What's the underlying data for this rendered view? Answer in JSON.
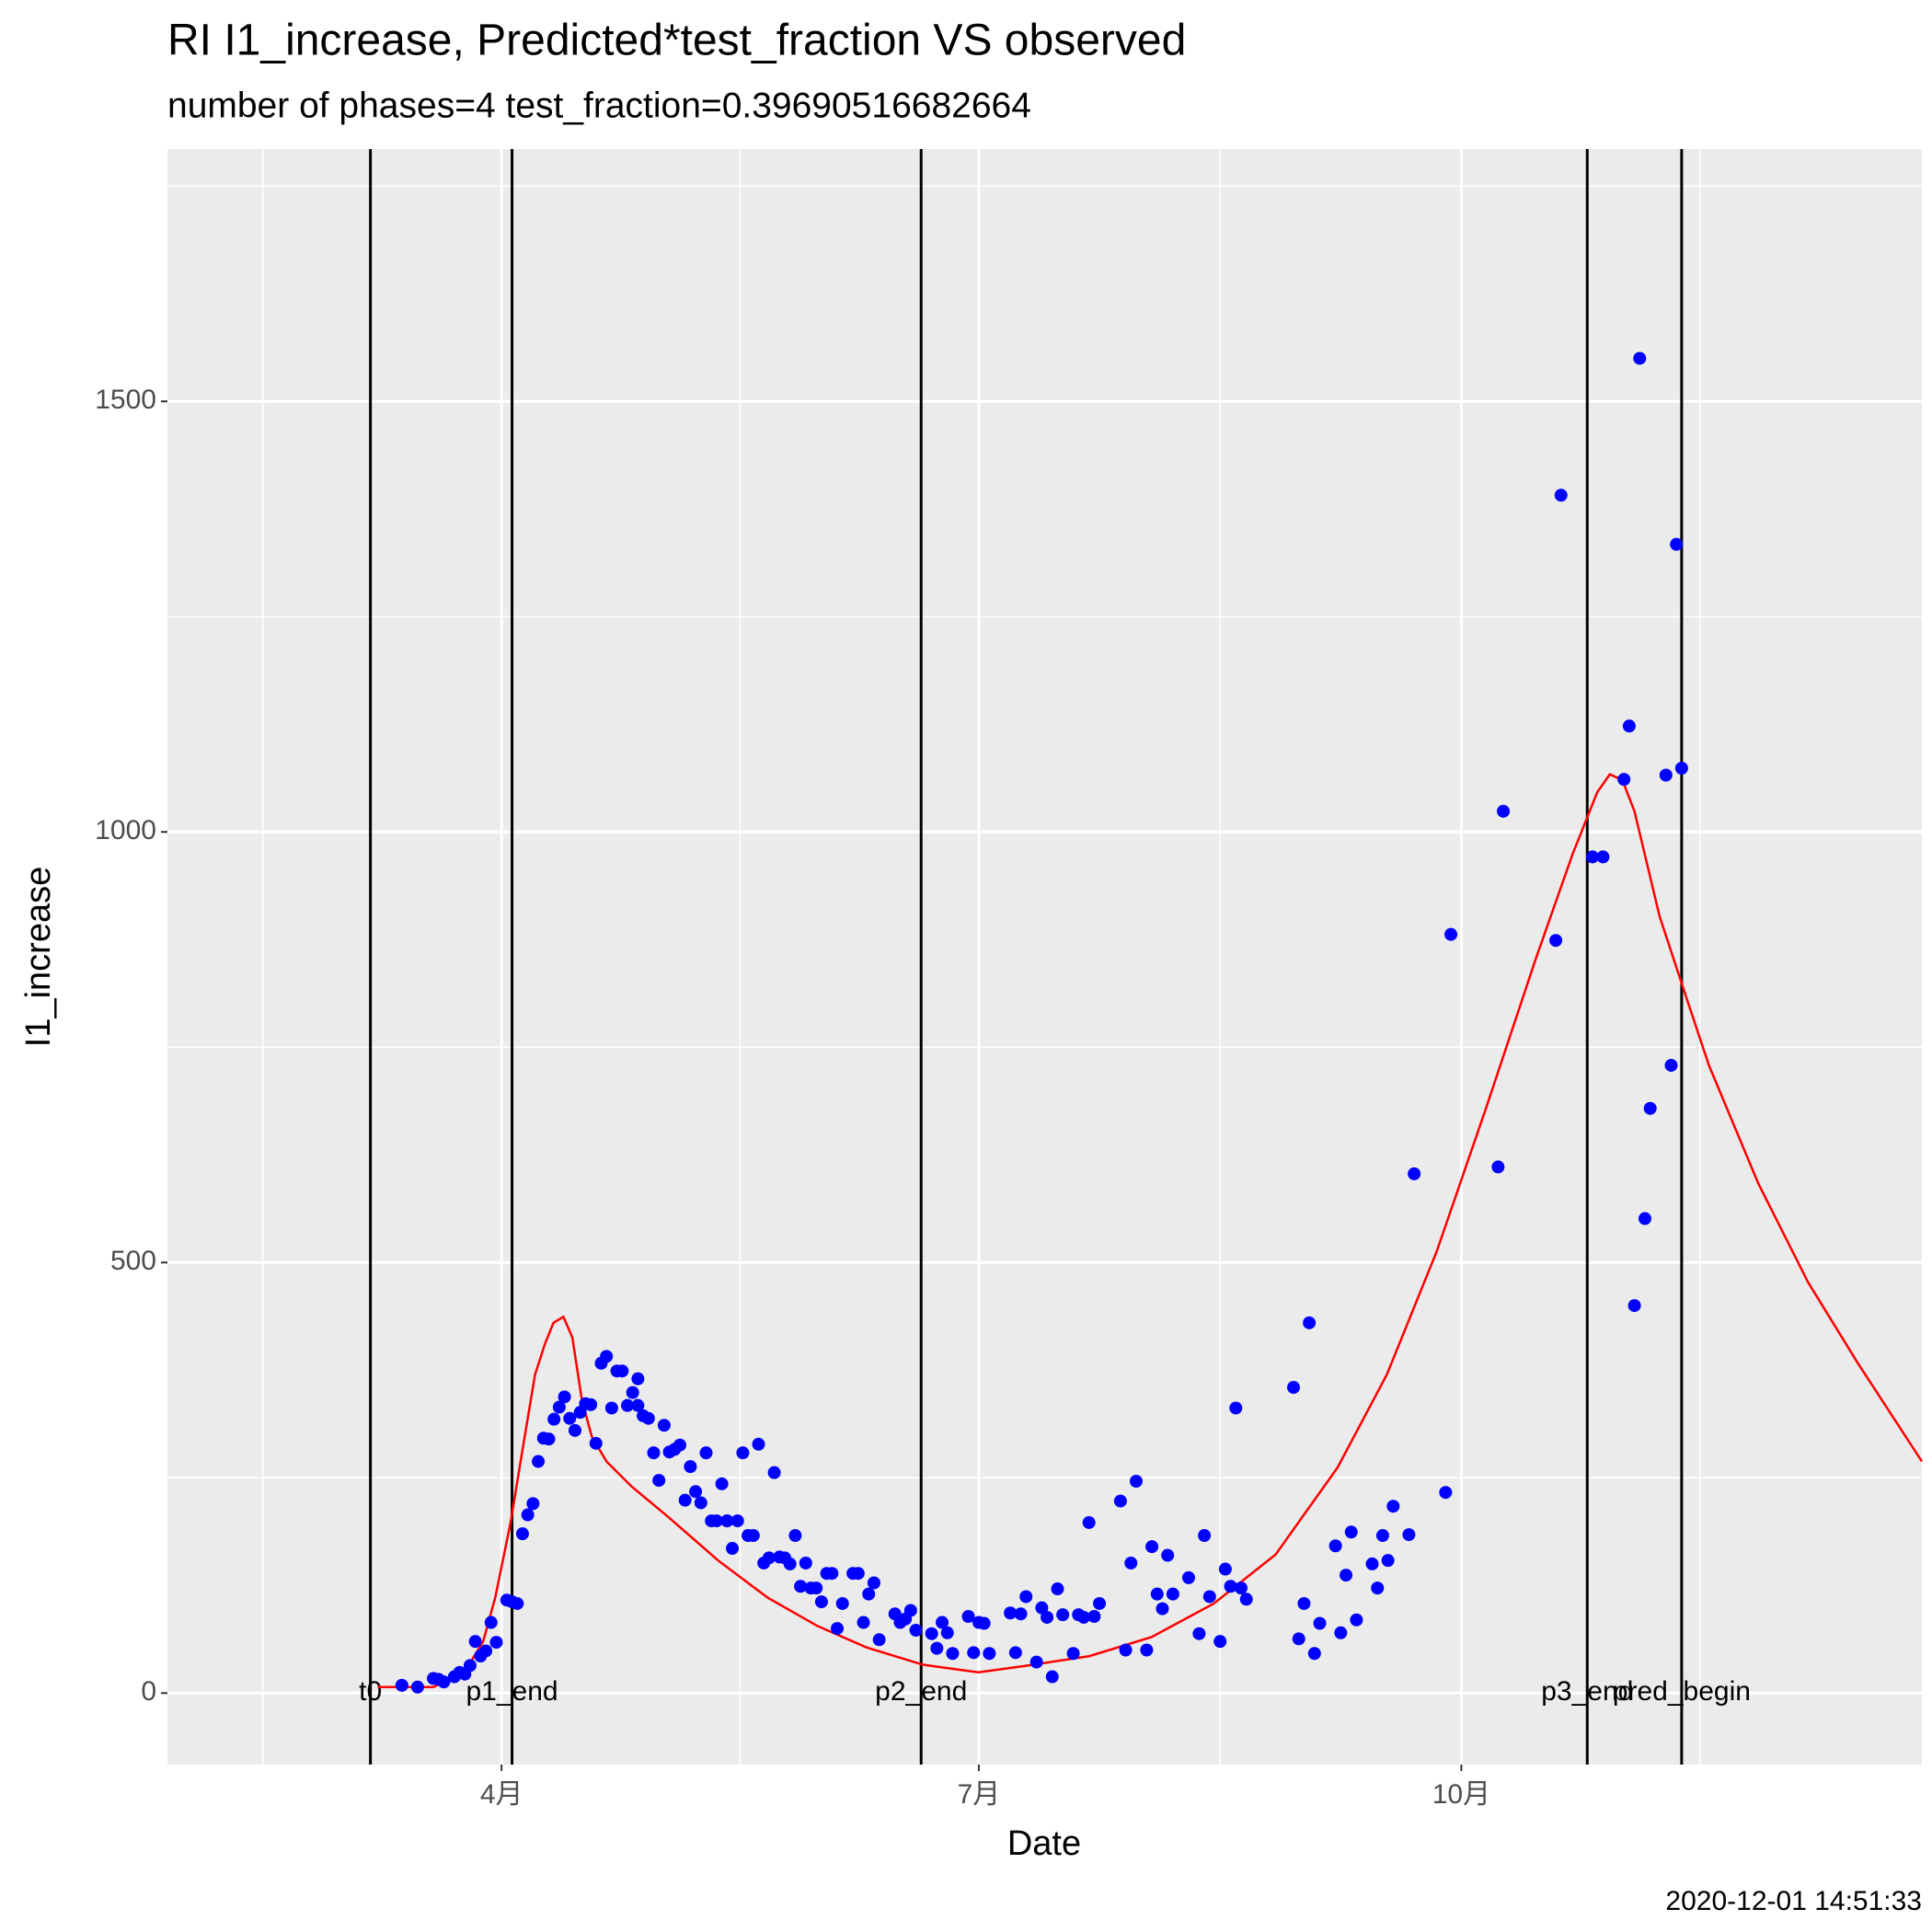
{
  "chart_data": {
    "type": "scatter",
    "title": "RI I1_increase, Predicted*test_fraction VS observed",
    "subtitle": "number of phases=4   test_fraction=0.39690516682664",
    "x_label": "Date",
    "y_label": "I1_increase",
    "caption": "2020-12-01 14:51:33",
    "xlim": [
      28.3,
      362.8
    ],
    "ylim": [
      -83,
      1793
    ],
    "xticks": [
      {
        "value": 92,
        "label": "4月"
      },
      {
        "value": 183,
        "label": "7月"
      },
      {
        "value": 275,
        "label": "10月"
      }
    ],
    "x_minor_ticks": [
      46.5,
      137.5,
      229,
      320.5
    ],
    "yticks": [
      0,
      500,
      1000,
      1500
    ],
    "y_minor_ticks": [
      250,
      750,
      1250,
      1750
    ],
    "grid": true,
    "points": {
      "color": "#0000ff",
      "x": [
        73,
        76,
        79,
        80,
        81,
        83,
        84,
        85,
        86,
        87,
        88,
        89,
        90,
        91,
        93,
        94,
        95,
        96,
        97,
        98,
        99,
        100,
        101,
        102,
        103,
        104,
        105,
        106,
        107,
        108,
        109,
        110,
        111,
        112,
        113,
        114,
        115,
        116,
        117,
        118,
        118,
        119,
        120,
        121,
        122,
        123,
        124,
        125,
        126,
        127,
        128,
        129,
        130,
        131,
        132,
        133,
        134,
        135,
        135,
        136,
        137,
        138,
        139,
        140,
        141,
        142,
        143,
        144,
        145,
        146,
        147,
        148,
        149,
        150,
        151,
        152,
        153,
        154,
        155,
        156,
        157,
        159,
        160,
        161,
        162,
        163,
        164,
        167,
        168,
        169,
        170,
        171,
        174,
        175,
        176,
        177,
        178,
        181,
        182,
        183,
        184,
        185,
        189,
        190,
        191,
        192,
        194,
        195,
        196,
        197,
        198,
        199,
        201,
        202,
        203,
        204,
        205,
        206,
        210,
        211,
        212,
        213,
        215,
        216,
        217,
        218,
        219,
        220,
        223,
        225,
        226,
        227,
        229,
        230,
        231,
        232,
        233,
        234,
        243,
        244,
        245,
        246,
        247,
        248,
        251,
        252,
        253,
        254,
        255,
        258,
        259,
        260,
        261,
        262,
        265,
        266,
        272,
        273,
        282,
        283,
        293,
        294,
        300,
        302,
        306,
        307,
        308,
        309,
        310,
        311,
        314,
        315,
        316,
        317
      ],
      "y": [
        9,
        7,
        17,
        16,
        13,
        19,
        24,
        22,
        32,
        60,
        43,
        49,
        82,
        59,
        108,
        106,
        104,
        185,
        207,
        220,
        269,
        296,
        295,
        318,
        332,
        344,
        319,
        305,
        326,
        336,
        335,
        290,
        383,
        391,
        331,
        374,
        374,
        334,
        349,
        365,
        334,
        322,
        319,
        279,
        247,
        311,
        280,
        283,
        288,
        224,
        263,
        234,
        221,
        279,
        200,
        200,
        243,
        200,
        200,
        168,
        200,
        279,
        183,
        183,
        289,
        151,
        157,
        256,
        158,
        157,
        150,
        183,
        124,
        151,
        122,
        122,
        106,
        139,
        139,
        75,
        104,
        139,
        139,
        82,
        115,
        128,
        62,
        92,
        82,
        86,
        96,
        73,
        69,
        52,
        82,
        70,
        46,
        89,
        47,
        82,
        81,
        46,
        93,
        47,
        92,
        112,
        36,
        99,
        88,
        19,
        121,
        91,
        46,
        91,
        88,
        198,
        89,
        104,
        223,
        50,
        151,
        246,
        50,
        170,
        115,
        98,
        160,
        115,
        134,
        69,
        183,
        112,
        60,
        144,
        124,
        331,
        122,
        109,
        355,
        63,
        104,
        430,
        46,
        81,
        171,
        70,
        137,
        187,
        85,
        150,
        122,
        183,
        154,
        217,
        184,
        603,
        233,
        881,
        611,
        1024,
        874,
        1391,
        971,
        971,
        1061,
        1123,
        450,
        1550,
        551,
        679,
        1066,
        729,
        1334,
        1074
      ]
    },
    "line": {
      "color": "#ff0000",
      "x": [
        68.4,
        79,
        84.9,
        88.5,
        90.8,
        93.7,
        96,
        98.4,
        100.3,
        101.9,
        103.8,
        105.5,
        107.3,
        109.2,
        112,
        116.8,
        123.9,
        133.3,
        142.7,
        152.2,
        161.6,
        172.3,
        182.9,
        192.3,
        204.1,
        215.9,
        227.8,
        239.6,
        251.4,
        260.8,
        270.3,
        279.7,
        289.1,
        296.2,
        300.9,
        303.3,
        305.7,
        308,
        312.8,
        317.5,
        322.2,
        331.6,
        341.1,
        350.5,
        362.8
      ],
      "y": [
        7,
        7,
        24,
        60,
        111,
        197,
        283,
        370,
        406,
        430,
        437,
        413,
        341,
        298,
        269,
        240,
        204,
        154,
        111,
        78,
        53,
        33,
        24,
        32,
        43,
        65,
        104,
        161,
        262,
        370,
        513,
        679,
        851,
        974,
        1046,
        1067,
        1060,
        1024,
        902,
        815,
        729,
        592,
        477,
        384,
        269
      ]
    },
    "vlines": [
      {
        "x": 67,
        "label": "t0"
      },
      {
        "x": 94,
        "label": "p1_end"
      },
      {
        "x": 172,
        "label": "p2_end"
      },
      {
        "x": 299,
        "label": "p3_end"
      },
      {
        "x": 317,
        "label": "pred_begin"
      }
    ]
  }
}
